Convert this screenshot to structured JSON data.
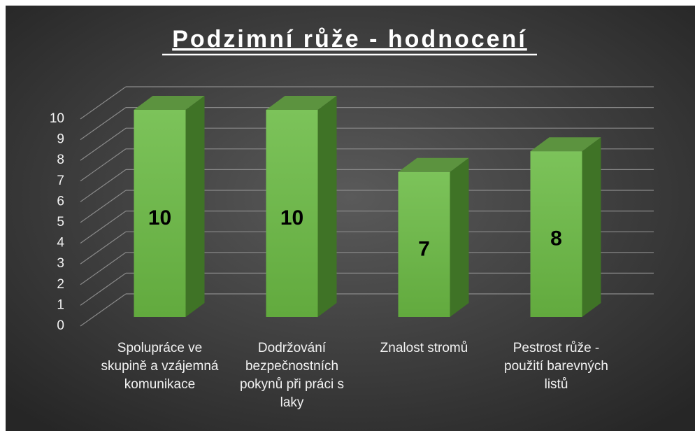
{
  "chart_data": {
    "type": "bar3d",
    "title": "Podzimní růže - hodnocení",
    "categories": [
      "Spolupráce ve skupině a vzájemná komunikace",
      "Dodržování bezpečnostních pokynů při práci s laky",
      "Znalost stromů",
      "Pestrost růže - použití barevných listů"
    ],
    "values": [
      10,
      10,
      7,
      8
    ],
    "color": "#6cb84a",
    "ylim": [
      0,
      10
    ],
    "yticks": [
      0,
      1,
      2,
      3,
      4,
      5,
      6,
      7,
      8,
      9,
      10
    ],
    "grid": true
  }
}
